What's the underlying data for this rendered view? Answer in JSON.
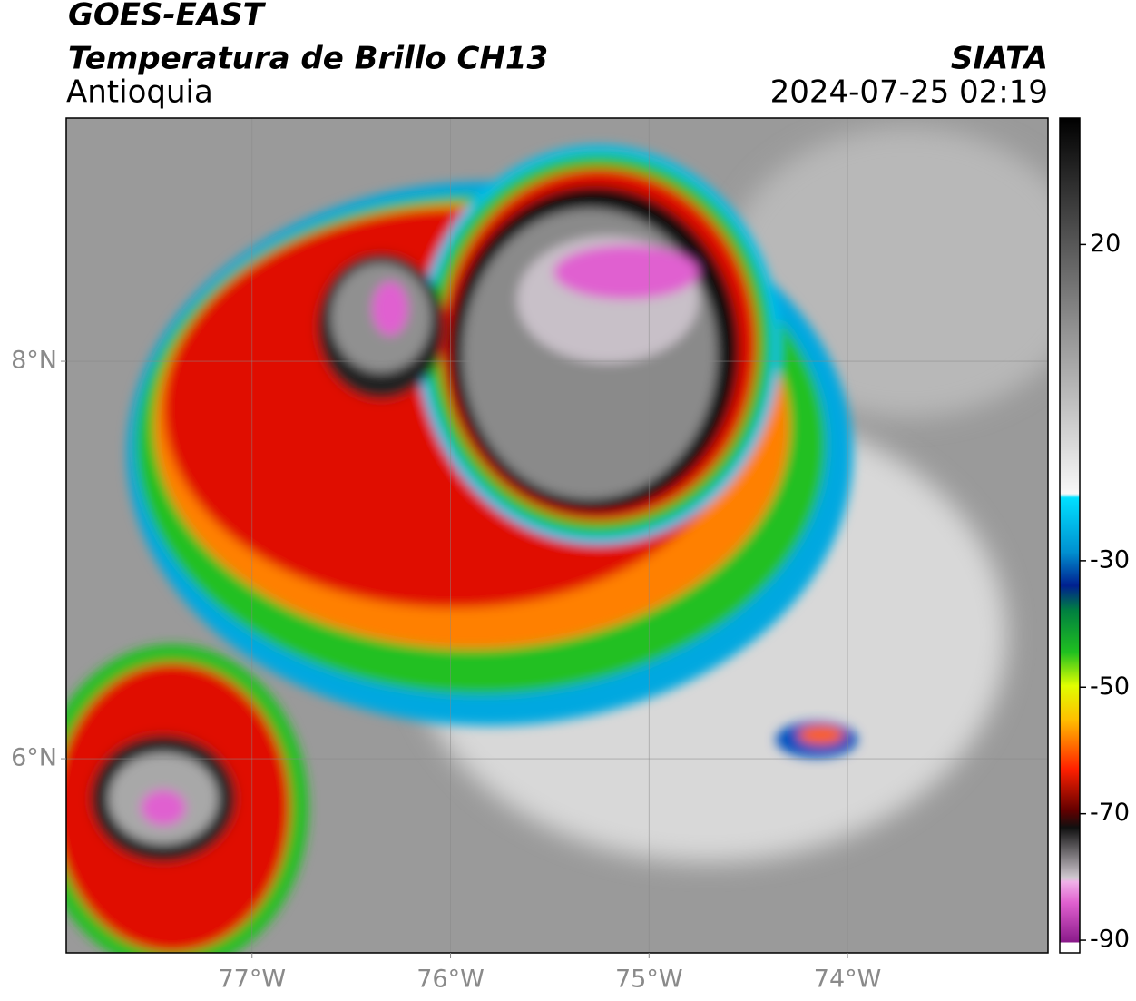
{
  "header": {
    "line1": "GOES-EAST",
    "title": "Temperatura de Brillo CH13",
    "region": "Antioquia",
    "source": "SIATA",
    "datetime": "2024-07-25 02:19"
  },
  "map": {
    "xlim": [
      -77.936,
      -72.99
    ],
    "ylim": [
      5.023,
      9.224
    ],
    "xticks": [
      {
        "value": -77,
        "label": "77°W"
      },
      {
        "value": -76,
        "label": "76°W"
      },
      {
        "value": -75,
        "label": "75°W"
      },
      {
        "value": -74,
        "label": "74°W"
      }
    ],
    "yticks": [
      {
        "value": 8,
        "label": "8°N"
      },
      {
        "value": 6,
        "label": "6°N"
      }
    ],
    "grid": true
  },
  "colorbar": {
    "lim": [
      -92,
      40
    ],
    "ticks": [
      20,
      -30,
      -50,
      -70,
      -90
    ]
  }
}
